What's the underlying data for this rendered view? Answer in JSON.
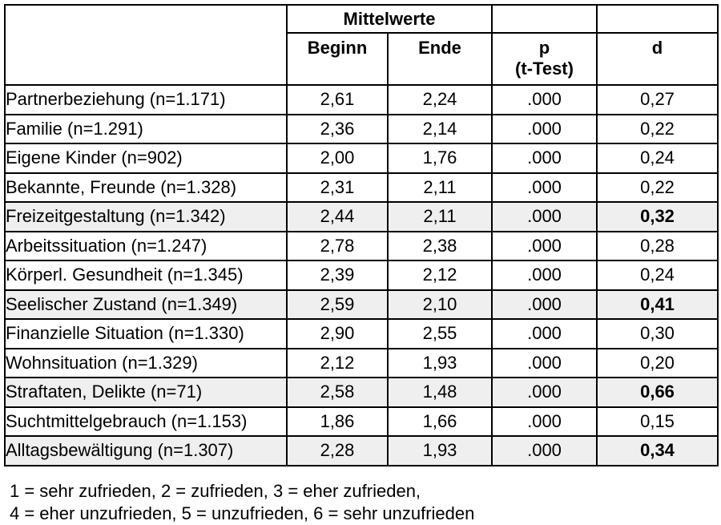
{
  "table": {
    "header": {
      "group": "Mittelwerte",
      "col_beginn": "Beginn",
      "col_ende": "Ende",
      "col_p_line1": "p",
      "col_p_line2": "(t-Test)",
      "col_d": "d"
    },
    "rows": [
      {
        "label": "Partnerbeziehung (n=1.171)",
        "beginn": "2,61",
        "ende": "2,24",
        "p": ".000",
        "d": "0,27",
        "shaded": false,
        "d_bold": false
      },
      {
        "label": "Familie (n=1.291)",
        "beginn": "2,36",
        "ende": "2,14",
        "p": ".000",
        "d": "0,22",
        "shaded": false,
        "d_bold": false
      },
      {
        "label": "Eigene Kinder (n=902)",
        "beginn": "2,00",
        "ende": "1,76",
        "p": ".000",
        "d": "0,24",
        "shaded": false,
        "d_bold": false
      },
      {
        "label": "Bekannte, Freunde (n=1.328)",
        "beginn": "2,31",
        "ende": "2,11",
        "p": ".000",
        "d": "0,22",
        "shaded": false,
        "d_bold": false
      },
      {
        "label": "Freizeitgestaltung (n=1.342)",
        "beginn": "2,44",
        "ende": "2,11",
        "p": ".000",
        "d": "0,32",
        "shaded": true,
        "d_bold": true
      },
      {
        "label": "Arbeitssituation (n=1.247)",
        "beginn": "2,78",
        "ende": "2,38",
        "p": ".000",
        "d": "0,28",
        "shaded": false,
        "d_bold": false
      },
      {
        "label": "Körperl. Gesundheit (n=1.345)",
        "beginn": "2,39",
        "ende": "2,12",
        "p": ".000",
        "d": "0,24",
        "shaded": false,
        "d_bold": false
      },
      {
        "label": "Seelischer Zustand (n=1.349)",
        "beginn": "2,59",
        "ende": "2,10",
        "p": ".000",
        "d": "0,41",
        "shaded": true,
        "d_bold": true
      },
      {
        "label": "Finanzielle Situation (n=1.330)",
        "beginn": "2,90",
        "ende": "2,55",
        "p": ".000",
        "d": "0,30",
        "shaded": false,
        "d_bold": false
      },
      {
        "label": "Wohnsituation (n=1.329)",
        "beginn": "2,12",
        "ende": "1,93",
        "p": ".000",
        "d": "0,20",
        "shaded": false,
        "d_bold": false
      },
      {
        "label": "Straftaten, Delikte (n=71)",
        "beginn": "2,58",
        "ende": "1,48",
        "p": ".000",
        "d": "0,66",
        "shaded": true,
        "d_bold": true
      },
      {
        "label": "Suchtmittelgebrauch (n=1.153)",
        "beginn": "1,86",
        "ende": "1,66",
        "p": ".000",
        "d": "0,15",
        "shaded": false,
        "d_bold": false
      },
      {
        "label": "Alltagsbewältigung (n=1.307)",
        "beginn": "2,28",
        "ende": "1,93",
        "p": ".000",
        "d": "0,34",
        "shaded": true,
        "d_bold": true
      }
    ]
  },
  "legend": {
    "line1": "1 = sehr zufrieden, 2 = zufrieden, 3 = eher zufrieden,",
    "line2": "4 = eher unzufrieden, 5 = unzufrieden, 6 = sehr unzufrieden"
  },
  "colors": {
    "row_shade": "#efefef",
    "border": "#000000",
    "background": "#ffffff"
  }
}
